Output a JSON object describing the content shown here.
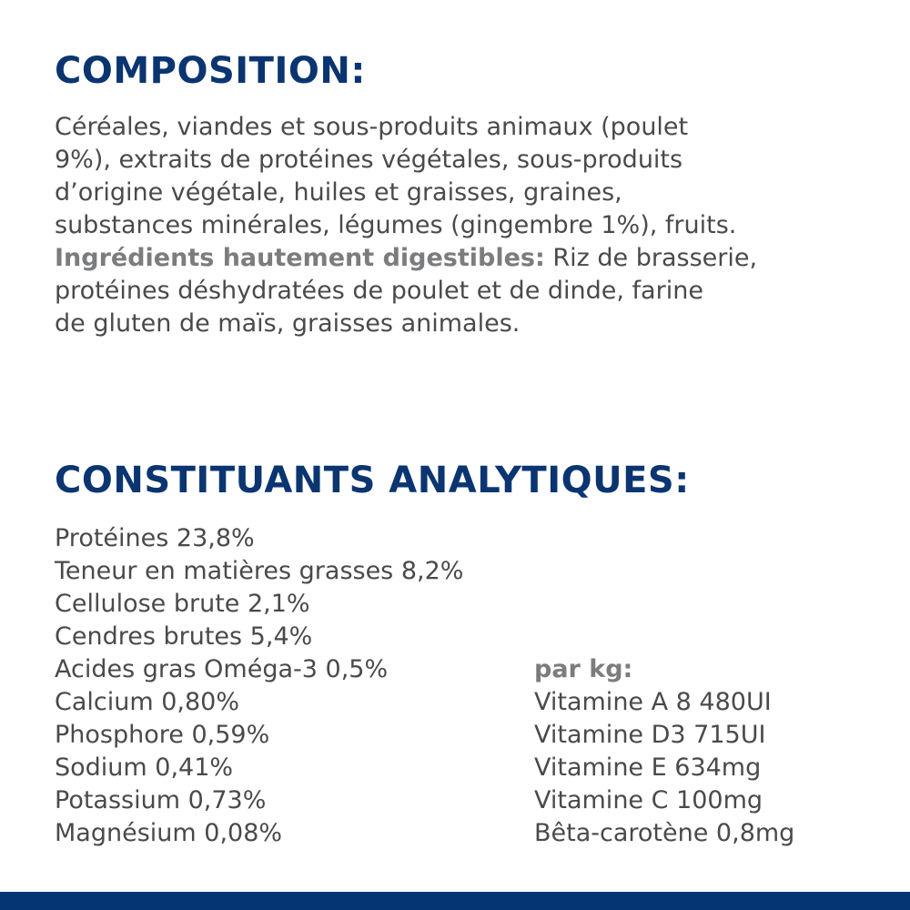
{
  "composition": {
    "title": "COMPOSITION:",
    "lines": [
      "Céréales, viandes et sous-produits animaux (poulet",
      "9%), extraits de protéines végétales, sous-produits",
      "d’origine végétale, huiles et graisses, graines,",
      "substances minérales, légumes (gingembre 1%), fruits."
    ],
    "highlight_label": "Ingrédients hautement digestibles:",
    "highlight_lines": [
      " Riz de brasserie,",
      "protéines déshydratées de poulet et de dinde, farine",
      "de gluten de maïs, graisses animales."
    ]
  },
  "analytical": {
    "title": "CONSTITUANTS ANALYTIQUES:",
    "items": [
      "Protéines 23,8%",
      "Teneur en matières grasses 8,2%",
      "Cellulose brute 2,1%",
      "Cendres brutes 5,4%",
      "Acides gras Oméga-3 0,5%",
      "Calcium 0,80%",
      "Phosphore 0,59%",
      "Sodium 0,41%",
      "Potassium 0,73%",
      "Magnésium 0,08%"
    ],
    "per_kg_label": "par kg:",
    "per_kg_items": [
      "Vitamine A 8 480UI",
      "Vitamine D3 715UI",
      "Vitamine E 634mg",
      "Vitamine C 100mg",
      "Bêta-carotène 0,8mg"
    ]
  },
  "colors": {
    "heading": "#0b3571",
    "text": "#4a4a4a",
    "bold_label": "#7b7c7e",
    "footer_bar": "#063574"
  }
}
